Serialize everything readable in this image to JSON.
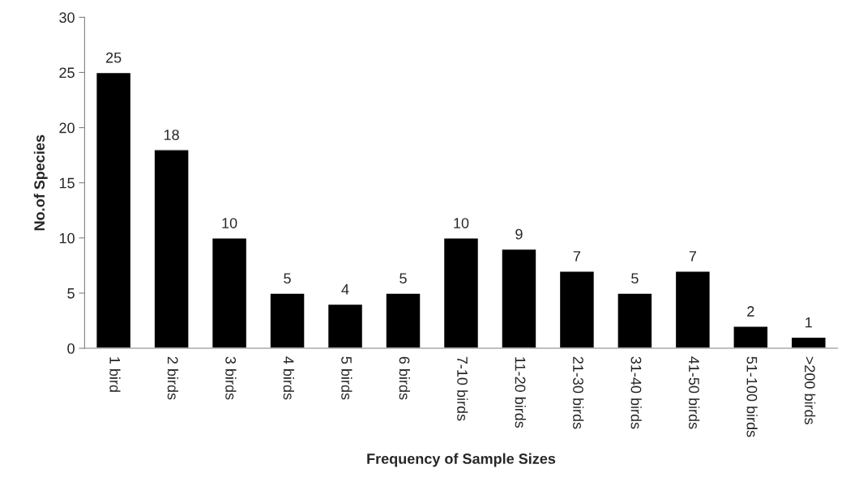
{
  "chart_data": {
    "type": "bar",
    "xlabel": "Frequency of Sample Sizes",
    "ylabel": "No.of Species",
    "categories": [
      "1 bird",
      "2 birds",
      "3 birds",
      "4 birds",
      "5 birds",
      "6 birds",
      "7-10 birds",
      "11-20 birds",
      "21-30 birds",
      "31-40 birds",
      "41-50 birds",
      "51-100 birds",
      ">200 birds"
    ],
    "values": [
      25,
      18,
      10,
      5,
      4,
      5,
      10,
      9,
      7,
      5,
      7,
      2,
      1
    ],
    "color": "#000000",
    "ylim": [
      0,
      30
    ],
    "yticks": [
      0,
      5,
      10,
      15,
      20,
      25,
      30
    ],
    "grid": false,
    "data_labels": true
  }
}
